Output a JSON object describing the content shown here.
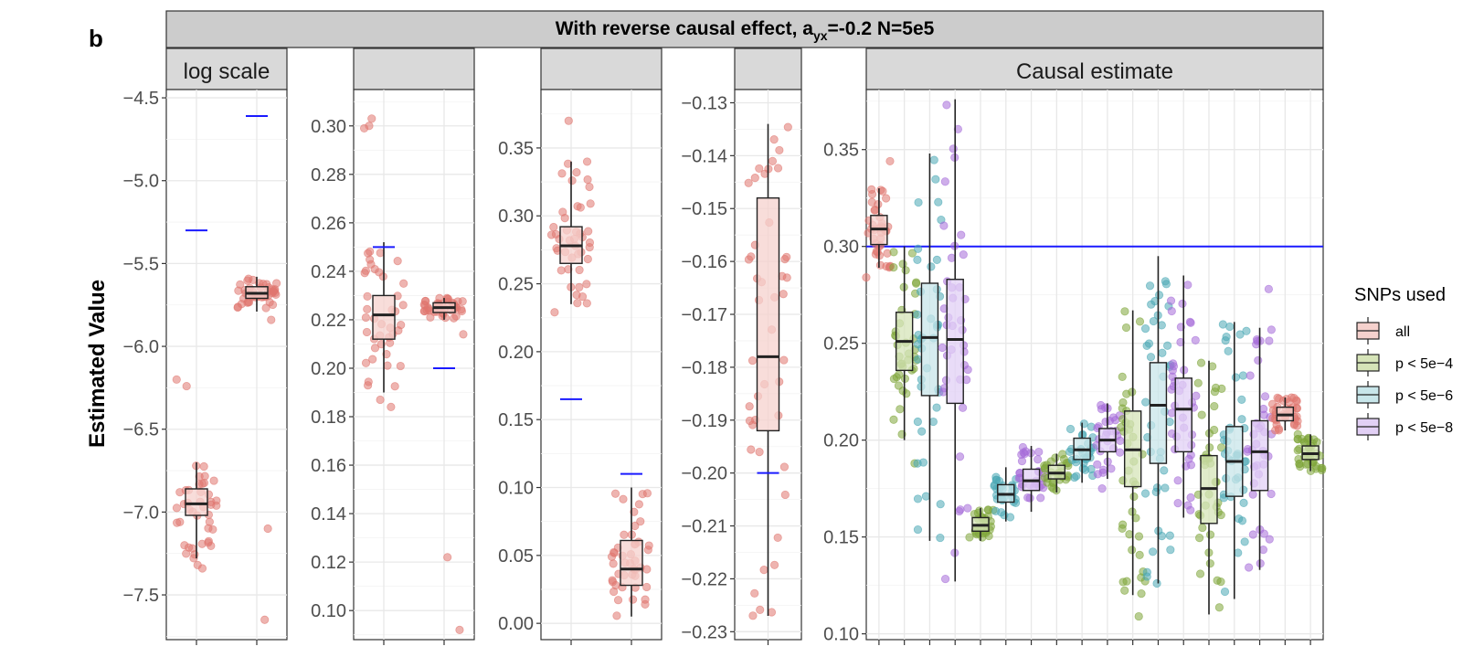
{
  "panel_tag": "b",
  "title": {
    "prefix": "With reverse causal effect, a",
    "subscript": "yx",
    "suffix": "=-0.2 N=5e5"
  },
  "ylabel": "Estimated Value",
  "legend": {
    "title": "SNPs used",
    "items": [
      {
        "label": "all",
        "color": "#e0776f",
        "fill": "#f5d1cd"
      },
      {
        "label": "p < 5e−4",
        "color": "#7fa53a",
        "fill": "#d6e4b8"
      },
      {
        "label": "p < 5e−6",
        "color": "#4aa8b5",
        "fill": "#c8e6ea"
      },
      {
        "label": "p < 5e−8",
        "color": "#a56cd8",
        "fill": "#e2d0f5"
      }
    ]
  },
  "true_value_color": "#1a1aff",
  "chart_data": [
    {
      "type": "box",
      "strip": "log scale",
      "ylim": [
        -7.77,
        -4.45
      ],
      "yticks": [
        -4.5,
        -5.0,
        -5.5,
        -6.0,
        -6.5,
        -7.0,
        -7.5
      ],
      "ytick_labels": [
        "−4.5",
        "−5.0",
        "−5.5",
        "−6.0",
        "−6.5",
        "−7.0",
        "−7.5"
      ],
      "true_values": [
        -5.3,
        -4.61
      ],
      "boxes": [
        {
          "group": "all",
          "q1": -7.02,
          "median": -6.95,
          "q3": -6.86,
          "whisker_low": -7.28,
          "whisker_high": -6.7,
          "outliers": [
            -6.2,
            -6.24,
            -7.32,
            -7.34
          ],
          "n_points": 45
        },
        {
          "group": "all",
          "q1": -5.71,
          "median": -5.68,
          "q3": -5.64,
          "whisker_low": -5.79,
          "whisker_high": -5.58,
          "outliers": [
            -5.84,
            -7.1,
            -7.65
          ],
          "n_points": 45
        }
      ]
    },
    {
      "type": "box",
      "strip": "",
      "ylim": [
        0.088,
        0.315
      ],
      "yticks": [
        0.1,
        0.12,
        0.14,
        0.16,
        0.18,
        0.2,
        0.22,
        0.24,
        0.26,
        0.28,
        0.3
      ],
      "ytick_labels": [
        "0.10",
        "0.12",
        "0.14",
        "0.16",
        "0.18",
        "0.20",
        "0.22",
        "0.24",
        "0.26",
        "0.28",
        "0.30"
      ],
      "true_values": [
        0.25,
        0.2
      ],
      "boxes": [
        {
          "group": "all",
          "q1": 0.212,
          "median": 0.222,
          "q3": 0.23,
          "whisker_low": 0.19,
          "whisker_high": 0.252,
          "outliers": [
            0.184,
            0.187,
            0.299,
            0.3,
            0.303
          ],
          "n_points": 45
        },
        {
          "group": "all",
          "q1": 0.223,
          "median": 0.225,
          "q3": 0.227,
          "whisker_low": 0.22,
          "whisker_high": 0.229,
          "outliers": [
            0.214,
            0.122,
            0.092
          ],
          "n_points": 45
        }
      ]
    },
    {
      "type": "box",
      "strip": "",
      "ylim": [
        -0.012,
        0.393
      ],
      "yticks": [
        0.0,
        0.05,
        0.1,
        0.15,
        0.2,
        0.25,
        0.3,
        0.35
      ],
      "ytick_labels": [
        "0.00",
        "0.05",
        "0.10",
        "0.15",
        "0.20",
        "0.25",
        "0.30",
        "0.35"
      ],
      "true_values": [
        0.165,
        0.11
      ],
      "boxes": [
        {
          "group": "all",
          "q1": 0.265,
          "median": 0.278,
          "q3": 0.292,
          "whisker_low": 0.235,
          "whisker_high": 0.34,
          "outliers": [
            0.229,
            0.326,
            0.37
          ],
          "n_points": 45
        },
        {
          "group": "all",
          "q1": 0.028,
          "median": 0.04,
          "q3": 0.061,
          "whisker_low": 0.005,
          "whisker_high": 0.1,
          "outliers": [
            0.04,
            0.075
          ],
          "n_points": 45
        }
      ]
    },
    {
      "type": "box",
      "strip": "",
      "ylim": [
        -0.2315,
        -0.1275
      ],
      "yticks": [
        -0.13,
        -0.14,
        -0.15,
        -0.16,
        -0.17,
        -0.18,
        -0.19,
        -0.2,
        -0.21,
        -0.22,
        -0.23
      ],
      "ytick_labels": [
        "−0.13",
        "−0.14",
        "−0.15",
        "−0.16",
        "−0.17",
        "−0.18",
        "−0.19",
        "−0.20",
        "−0.21",
        "−0.22",
        "−0.23"
      ],
      "true_values": [
        -0.2
      ],
      "boxes": [
        {
          "group": "all",
          "q1": -0.192,
          "median": -0.178,
          "q3": -0.148,
          "whisker_low": -0.227,
          "whisker_high": -0.134,
          "outliers": [],
          "n_points": 45
        }
      ]
    },
    {
      "type": "box",
      "strip": "Causal estimate",
      "ylim": [
        0.097,
        0.381
      ],
      "yticks": [
        0.1,
        0.15,
        0.2,
        0.25,
        0.3,
        0.35
      ],
      "ytick_labels": [
        "0.10",
        "0.15",
        "0.20",
        "0.25",
        "0.30",
        "0.35"
      ],
      "true_values": [
        0.3
      ],
      "boxes": [
        {
          "group": "all",
          "q1": 0.301,
          "median": 0.309,
          "q3": 0.316,
          "whisker_low": 0.289,
          "whisker_high": 0.33,
          "outliers": [
            0.284,
            0.344
          ],
          "n_points": 40
        },
        {
          "group": "p < 5e−4",
          "q1": 0.236,
          "median": 0.251,
          "q3": 0.266,
          "whisker_low": 0.2,
          "whisker_high": 0.3,
          "outliers": [
            0.188
          ],
          "n_points": 40
        },
        {
          "group": "p < 5e−6",
          "q1": 0.223,
          "median": 0.253,
          "q3": 0.281,
          "whisker_low": 0.148,
          "whisker_high": 0.348,
          "outliers": [],
          "n_points": 40
        },
        {
          "group": "p < 5e−8",
          "q1": 0.219,
          "median": 0.252,
          "q3": 0.283,
          "whisker_low": 0.127,
          "whisker_high": 0.376,
          "outliers": [],
          "n_points": 40
        },
        {
          "group": "p < 5e−4",
          "q1": 0.153,
          "median": 0.156,
          "q3": 0.16,
          "whisker_low": 0.148,
          "whisker_high": 0.165,
          "outliers": [],
          "n_points": 30
        },
        {
          "group": "p < 5e−6",
          "q1": 0.168,
          "median": 0.172,
          "q3": 0.177,
          "whisker_low": 0.158,
          "whisker_high": 0.186,
          "outliers": [],
          "n_points": 30
        },
        {
          "group": "p < 5e−8",
          "q1": 0.174,
          "median": 0.179,
          "q3": 0.185,
          "whisker_low": 0.163,
          "whisker_high": 0.197,
          "outliers": [],
          "n_points": 30
        },
        {
          "group": "p < 5e−4",
          "q1": 0.18,
          "median": 0.183,
          "q3": 0.187,
          "whisker_low": 0.173,
          "whisker_high": 0.193,
          "outliers": [],
          "n_points": 30
        },
        {
          "group": "p < 5e−6",
          "q1": 0.19,
          "median": 0.195,
          "q3": 0.201,
          "whisker_low": 0.178,
          "whisker_high": 0.209,
          "outliers": [],
          "n_points": 30
        },
        {
          "group": "p < 5e−8",
          "q1": 0.194,
          "median": 0.2,
          "q3": 0.206,
          "whisker_low": 0.18,
          "whisker_high": 0.219,
          "outliers": [
            0.175
          ],
          "n_points": 30
        },
        {
          "group": "p < 5e−4",
          "q1": 0.176,
          "median": 0.195,
          "q3": 0.215,
          "whisker_low": 0.12,
          "whisker_high": 0.267,
          "outliers": [
            0.109
          ],
          "n_points": 40
        },
        {
          "group": "p < 5e−6",
          "q1": 0.188,
          "median": 0.218,
          "q3": 0.24,
          "whisker_low": 0.126,
          "whisker_high": 0.295,
          "outliers": [],
          "n_points": 40
        },
        {
          "group": "p < 5e−8",
          "q1": 0.194,
          "median": 0.216,
          "q3": 0.232,
          "whisker_low": 0.16,
          "whisker_high": 0.285,
          "outliers": [],
          "n_points": 40
        },
        {
          "group": "p < 5e−4",
          "q1": 0.157,
          "median": 0.175,
          "q3": 0.192,
          "whisker_low": 0.11,
          "whisker_high": 0.241,
          "outliers": [],
          "n_points": 40
        },
        {
          "group": "p < 5e−6",
          "q1": 0.171,
          "median": 0.189,
          "q3": 0.207,
          "whisker_low": 0.118,
          "whisker_high": 0.261,
          "outliers": [],
          "n_points": 40
        },
        {
          "group": "p < 5e−8",
          "q1": 0.174,
          "median": 0.194,
          "q3": 0.21,
          "whisker_low": 0.133,
          "whisker_high": 0.258,
          "outliers": [
            0.278
          ],
          "n_points": 40
        },
        {
          "group": "all",
          "q1": 0.21,
          "median": 0.213,
          "q3": 0.217,
          "whisker_low": 0.205,
          "whisker_high": 0.222,
          "outliers": [],
          "n_points": 40
        },
        {
          "group": "p < 5e−4",
          "q1": 0.19,
          "median": 0.193,
          "q3": 0.197,
          "whisker_low": 0.184,
          "whisker_high": 0.203,
          "outliers": [],
          "n_points": 40
        }
      ]
    }
  ]
}
